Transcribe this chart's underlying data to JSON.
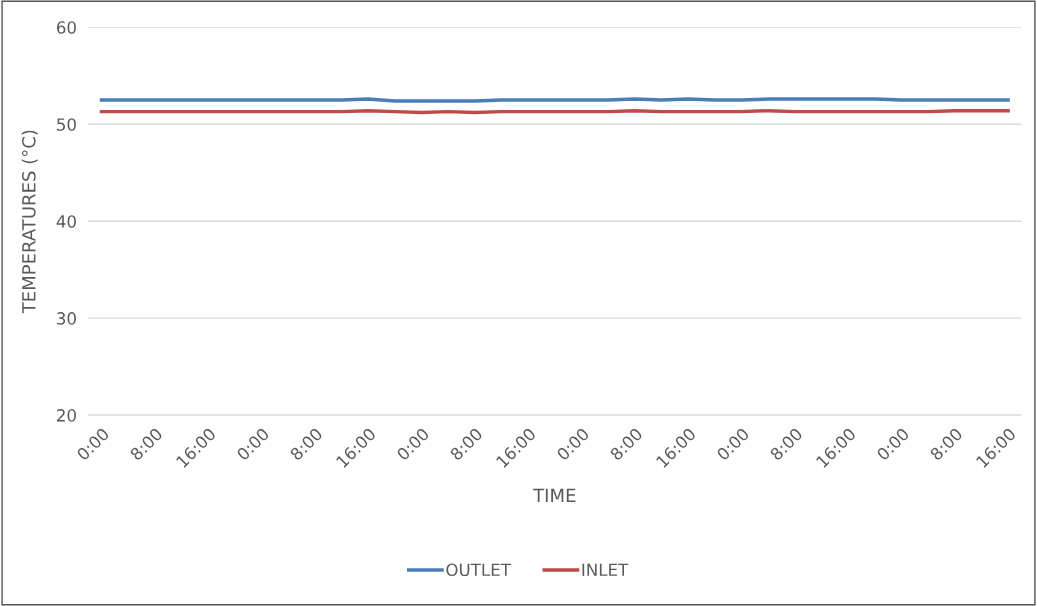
{
  "chart_data": {
    "type": "line",
    "xlabel": "TIME",
    "ylabel": "TEMPERATURES (°C)",
    "categories": [
      "0:00",
      null,
      "8:00",
      null,
      "16:00",
      null,
      "0:00",
      null,
      "8:00",
      null,
      "16:00",
      null,
      "0:00",
      null,
      "8:00",
      null,
      "16:00",
      null,
      "0:00",
      null,
      "8:00",
      null,
      "16:00",
      null,
      "0:00",
      null,
      "8:00",
      null,
      "16:00",
      null,
      "0:00",
      null,
      "8:00",
      null,
      "16:00"
    ],
    "series": [
      {
        "name": "OUTLET",
        "color": "#4a7ebb",
        "values": [
          52.5,
          52.5,
          52.5,
          52.5,
          52.5,
          52.5,
          52.5,
          52.5,
          52.5,
          52.5,
          52.6,
          52.4,
          52.4,
          52.4,
          52.4,
          52.5,
          52.5,
          52.5,
          52.5,
          52.5,
          52.6,
          52.5,
          52.6,
          52.5,
          52.5,
          52.6,
          52.6,
          52.6,
          52.6,
          52.6,
          52.5,
          52.5,
          52.5,
          52.5,
          52.5
        ]
      },
      {
        "name": "INLET",
        "color": "#be4b48",
        "values": [
          51.3,
          51.3,
          51.3,
          51.3,
          51.3,
          51.3,
          51.3,
          51.3,
          51.3,
          51.3,
          51.4,
          51.3,
          51.2,
          51.3,
          51.2,
          51.3,
          51.3,
          51.3,
          51.3,
          51.3,
          51.4,
          51.3,
          51.3,
          51.3,
          51.3,
          51.4,
          51.3,
          51.3,
          51.3,
          51.3,
          51.3,
          51.3,
          51.4,
          51.4,
          51.4
        ]
      }
    ],
    "ylim": [
      20,
      60
    ],
    "yticks": [
      20,
      30,
      40,
      50,
      60
    ],
    "grid": "y",
    "legend": "bottom"
  }
}
